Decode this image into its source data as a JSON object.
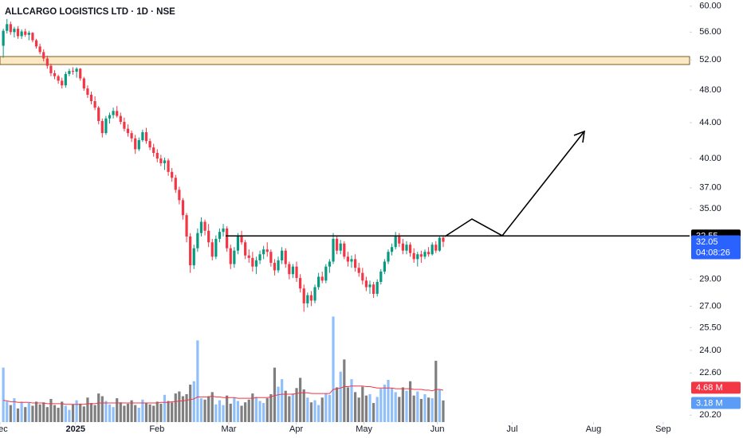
{
  "chart_data": {
    "type": "candlestick",
    "title": "ALLCARGO LOGISTICS LTD · 1D · NSE",
    "xlim": [
      -0.9,
      187.2
    ],
    "xticks": [
      {
        "value": -0.9,
        "label": "Dec"
      },
      {
        "value": 19.7,
        "label": "2025"
      },
      {
        "value": 41.9,
        "label": "Feb"
      },
      {
        "value": 61.5,
        "label": "Mar"
      },
      {
        "value": 79.9,
        "label": "Apr"
      },
      {
        "value": 98.4,
        "label": "May"
      },
      {
        "value": 118.4,
        "label": "Jun"
      },
      {
        "value": 138.8,
        "label": "Jul"
      },
      {
        "value": 161.0,
        "label": "Aug"
      },
      {
        "value": 180.0,
        "label": "Sep"
      }
    ],
    "log_scale": true,
    "ylim": [
      19.83,
      61.0
    ],
    "yticks": [
      {
        "value": 60,
        "label": "60.00"
      },
      {
        "value": 56,
        "label": "56.00"
      },
      {
        "value": 52,
        "label": "52.00"
      },
      {
        "value": 48,
        "label": "48.00"
      },
      {
        "value": 44,
        "label": "44.00"
      },
      {
        "value": 40,
        "label": "40.00"
      },
      {
        "value": 37,
        "label": "37.00"
      },
      {
        "value": 35,
        "label": "35.00"
      },
      {
        "value": 29,
        "label": "29.00"
      },
      {
        "value": 27,
        "label": "27.00"
      },
      {
        "value": 25.5,
        "label": "25.50"
      },
      {
        "value": 24,
        "label": "24.00"
      },
      {
        "value": 22.6,
        "label": "22.60"
      },
      {
        "value": 20.2,
        "label": "20.20"
      }
    ],
    "up_color": "#089981",
    "down_color": "#f23645",
    "open": [
      54.0,
      56.2,
      57.2,
      56.0,
      56.5,
      55.4,
      56.1,
      55.6,
      55.9,
      54.8,
      53.9,
      53.1,
      52.2,
      51.2,
      50.2,
      49.8,
      49.2,
      48.6,
      50.1,
      50.5,
      50.4,
      50.8,
      49.5,
      48.2,
      47.4,
      46.6,
      45.8,
      44.2,
      42.8,
      44.5,
      44.9,
      45.4,
      44.8,
      44.1,
      43.3,
      42.8,
      42.2,
      41.0,
      42.0,
      42.9,
      41.9,
      41.2,
      40.6,
      40.0,
      39.5,
      39.8,
      38.6,
      38.0,
      36.8,
      35.8,
      34.4,
      32.5,
      30.1,
      31.5,
      32.8,
      33.8,
      33.0,
      32.0,
      30.8,
      32.3,
      32.9,
      33.2,
      31.5,
      30.2,
      31.3,
      32.5,
      32.0,
      30.9,
      30.7,
      30.0,
      30.5,
      31.0,
      31.4,
      31.2,
      30.3,
      29.7,
      30.5,
      31.3,
      30.2,
      29.4,
      30.0,
      29.1,
      28.3,
      27.2,
      27.8,
      27.4,
      28.4,
      29.2,
      28.9,
      30.0,
      30.4,
      32.3,
      31.3,
      31.9,
      30.8,
      30.4,
      30.6,
      29.9,
      29.5,
      28.9,
      28.4,
      28.6,
      27.9,
      28.8,
      29.6,
      30.4,
      31.2,
      31.6,
      32.6,
      31.9,
      31.3,
      31.8,
      31.1,
      30.6,
      31.0,
      30.8,
      31.2,
      31.0,
      31.8,
      31.3,
      32.4
    ],
    "high": [
      56.5,
      58.0,
      57.6,
      56.8,
      56.9,
      56.4,
      56.5,
      56.2,
      56.0,
      55.0,
      54.3,
      53.5,
      52.6,
      51.5,
      50.6,
      50.0,
      49.6,
      50.4,
      50.8,
      51.0,
      51.0,
      50.9,
      49.7,
      48.6,
      47.8,
      47.2,
      46.0,
      44.5,
      44.8,
      45.2,
      45.8,
      46.0,
      45.2,
      44.6,
      43.8,
      43.1,
      42.6,
      42.3,
      43.2,
      43.4,
      42.2,
      41.6,
      41.0,
      40.4,
      40.1,
      40.0,
      39.0,
      38.3,
      37.1,
      36.0,
      34.6,
      32.8,
      31.8,
      33.2,
      34.2,
      34.0,
      33.6,
      32.3,
      32.6,
      33.2,
      33.6,
      33.4,
      31.8,
      31.6,
      32.8,
      33.0,
      32.2,
      31.4,
      31.2,
      30.8,
      31.3,
      31.7,
      32.0,
      31.4,
      30.6,
      30.8,
      31.6,
      31.5,
      30.4,
      30.2,
      30.4,
      29.4,
      28.6,
      28.0,
      28.1,
      28.6,
      29.5,
      29.6,
      30.2,
      30.6,
      32.8,
      32.6,
      32.2,
      32.1,
      31.2,
      30.9,
      31.0,
      30.3,
      29.9,
      29.2,
      28.9,
      28.8,
      29.0,
      29.8,
      30.6,
      31.4,
      31.9,
      32.9,
      32.8,
      32.3,
      32.1,
      32.0,
      31.5,
      31.2,
      31.3,
      31.4,
      31.6,
      32.0,
      32.1,
      32.6,
      32.6
    ],
    "low": [
      52.3,
      55.8,
      55.6,
      55.2,
      55.0,
      55.0,
      55.3,
      54.8,
      54.5,
      53.6,
      52.8,
      51.8,
      50.8,
      49.8,
      49.4,
      48.8,
      48.2,
      48.3,
      49.8,
      50.0,
      49.6,
      49.2,
      47.9,
      47.0,
      46.2,
      45.5,
      43.8,
      42.3,
      42.6,
      43.9,
      44.5,
      44.6,
      43.8,
      43.0,
      42.4,
      41.8,
      40.5,
      40.8,
      41.8,
      41.6,
      40.9,
      40.2,
      39.6,
      39.2,
      38.8,
      38.2,
      37.6,
      36.5,
      35.4,
      34.0,
      32.0,
      29.5,
      29.8,
      31.2,
      32.5,
      32.6,
      31.6,
      30.5,
      30.6,
      32.0,
      32.5,
      31.2,
      29.8,
      29.9,
      31.0,
      31.8,
      30.6,
      30.3,
      29.6,
      29.4,
      30.2,
      30.6,
      30.8,
      30.0,
      29.3,
      29.5,
      30.2,
      29.9,
      29.0,
      29.1,
      28.8,
      28.0,
      26.6,
      26.9,
      27.0,
      27.2,
      28.2,
      28.7,
      28.7,
      29.5,
      30.2,
      31.0,
      31.0,
      30.6,
      30.0,
      29.9,
      29.6,
      29.2,
      28.6,
      28.1,
      27.9,
      27.6,
      27.7,
      28.6,
      29.4,
      30.2,
      30.9,
      31.4,
      31.6,
      31.0,
      31.0,
      30.8,
      30.3,
      30.0,
      30.3,
      30.6,
      30.8,
      30.9,
      31.1,
      31.2,
      31.6
    ],
    "close": [
      56.2,
      57.2,
      56.0,
      56.5,
      55.4,
      56.1,
      55.6,
      55.9,
      54.8,
      53.9,
      53.1,
      52.2,
      51.2,
      50.2,
      49.8,
      49.2,
      48.6,
      50.1,
      50.5,
      50.4,
      50.8,
      49.5,
      48.2,
      47.4,
      46.6,
      45.8,
      44.2,
      42.8,
      44.5,
      44.9,
      45.4,
      44.8,
      44.1,
      43.3,
      42.8,
      42.2,
      41.0,
      42.0,
      42.9,
      41.9,
      41.2,
      40.6,
      40.0,
      39.5,
      39.8,
      38.6,
      38.0,
      36.8,
      35.8,
      34.4,
      32.5,
      30.1,
      31.5,
      32.8,
      33.8,
      33.0,
      32.0,
      30.8,
      32.3,
      32.9,
      33.2,
      31.5,
      30.2,
      31.3,
      32.5,
      32.0,
      30.9,
      30.7,
      30.0,
      30.5,
      31.0,
      31.4,
      31.2,
      30.3,
      29.7,
      30.5,
      31.3,
      30.2,
      29.4,
      30.0,
      29.1,
      28.3,
      27.2,
      27.8,
      27.4,
      28.4,
      29.2,
      28.9,
      30.0,
      30.4,
      32.3,
      31.3,
      31.9,
      30.8,
      30.4,
      30.6,
      29.9,
      29.5,
      28.9,
      28.4,
      28.6,
      27.9,
      28.8,
      29.6,
      30.4,
      31.2,
      31.6,
      32.6,
      31.9,
      31.3,
      31.8,
      31.1,
      30.6,
      31.0,
      30.8,
      31.2,
      31.0,
      31.8,
      31.3,
      32.4,
      32.05
    ],
    "volume_ylim": [
      0,
      62
    ],
    "volume_up_color": "#90bff9",
    "volume_down_color": "#7f7f7f",
    "volume": [
      8,
      3,
      2.5,
      3.5,
      2,
      3,
      2.2,
      2.8,
      2.4,
      3,
      2.6,
      2.9,
      2.2,
      3.4,
      2.5,
      2.1,
      3,
      2.4,
      1.8,
      2.6,
      3.2,
      2.7,
      2.3,
      3.6,
      2.8,
      2.5,
      4.2,
      3.8,
      3.1,
      2.6,
      2.2,
      3.5,
      2.9,
      2.4,
      2.7,
      3.2,
      2.5,
      2.1,
      3.3,
      2.8,
      2.6,
      2.4,
      3,
      2.7,
      4,
      3.1,
      2.9,
      4.2,
      4.5,
      3.8,
      4.1,
      5.5,
      6,
      12,
      3.5,
      3.3,
      3.8,
      4.4,
      2.6,
      3.2,
      2.5,
      3.9,
      2.7,
      3.6,
      3.1,
      2.4,
      2.9,
      3.3,
      4.2,
      3.7,
      3.1,
      2.8,
      3.5,
      4.1,
      8,
      5.2,
      6.3,
      4.6,
      3.8,
      4.2,
      5,
      6.5,
      4.8,
      3.6,
      2.9,
      3.2,
      2.5,
      3.6,
      4.2,
      4.0,
      15.5,
      5.1,
      7.4,
      9.2,
      5.1,
      6.3,
      4.4,
      3.6,
      5.2,
      3.9,
      4.1,
      2.8,
      3.7,
      4.9,
      5.5,
      6.2,
      5,
      4.4,
      3.7,
      5.1,
      4.6,
      6,
      3.9,
      4.5,
      3.4,
      4.1,
      3.6,
      3.5,
      9,
      4.8,
      3.18
    ],
    "volume_ma_color": "#f23645",
    "volume_ma": [
      3.2,
      3.1,
      3.0,
      3.0,
      2.9,
      2.9,
      2.9,
      2.9,
      2.8,
      2.8,
      2.8,
      2.8,
      2.7,
      2.7,
      2.7,
      2.7,
      2.7,
      2.6,
      2.6,
      2.6,
      2.6,
      2.6,
      2.6,
      2.7,
      2.7,
      2.7,
      2.8,
      2.8,
      2.8,
      2.8,
      2.8,
      2.8,
      2.8,
      2.8,
      2.8,
      2.8,
      2.8,
      2.8,
      2.8,
      2.8,
      2.8,
      2.8,
      2.8,
      2.9,
      2.9,
      2.9,
      3.0,
      3.0,
      3.1,
      3.1,
      3.2,
      3.3,
      3.4,
      3.7,
      3.7,
      3.7,
      3.7,
      3.8,
      3.7,
      3.7,
      3.6,
      3.6,
      3.6,
      3.6,
      3.5,
      3.5,
      3.5,
      3.5,
      3.5,
      3.6,
      3.6,
      3.6,
      3.6,
      3.7,
      3.9,
      4.0,
      4.1,
      4.1,
      4.1,
      4.1,
      4.2,
      4.3,
      4.3,
      4.3,
      4.2,
      4.2,
      4.2,
      4.2,
      4.2,
      4.2,
      4.8,
      4.9,
      5.0,
      5.2,
      5.2,
      5.3,
      5.3,
      5.3,
      5.3,
      5.2,
      5.2,
      5.1,
      5.0,
      5.0,
      5.0,
      5.0,
      5.0,
      4.9,
      4.9,
      4.9,
      4.9,
      4.9,
      4.8,
      4.8,
      4.8,
      4.7,
      4.7,
      4.6,
      4.8,
      4.8,
      4.68
    ],
    "level": 32.55,
    "countdown": "04:08:26",
    "volume_label": "3.18 M",
    "volume_ma_label": "4.68 M"
  }
}
